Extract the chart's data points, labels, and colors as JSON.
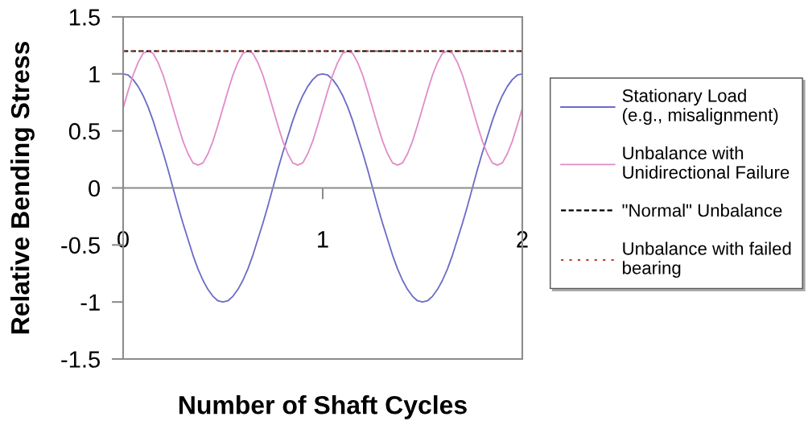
{
  "chart_data": {
    "type": "line",
    "xlabel": "Number of Shaft Cycles",
    "ylabel": "Relative Bending Stress",
    "x": [
      0,
      0.025,
      0.05,
      0.075,
      0.1,
      0.125,
      0.15,
      0.175,
      0.2,
      0.225,
      0.25,
      0.275,
      0.3,
      0.325,
      0.35,
      0.375,
      0.4,
      0.425,
      0.45,
      0.475,
      0.5,
      0.525,
      0.55,
      0.575,
      0.6,
      0.625,
      0.65,
      0.675,
      0.7,
      0.725,
      0.75,
      0.775,
      0.8,
      0.825,
      0.85,
      0.875,
      0.9,
      0.925,
      0.95,
      0.975,
      1,
      1.025,
      1.05,
      1.075,
      1.1,
      1.125,
      1.15,
      1.175,
      1.2,
      1.225,
      1.25,
      1.275,
      1.3,
      1.325,
      1.35,
      1.375,
      1.4,
      1.425,
      1.45,
      1.475,
      1.5,
      1.525,
      1.55,
      1.575,
      1.6,
      1.625,
      1.65,
      1.675,
      1.7,
      1.725,
      1.75,
      1.775,
      1.8,
      1.825,
      1.85,
      1.875,
      1.9,
      1.925,
      1.95,
      1.975,
      2
    ],
    "series": [
      {
        "name": "Stationary Load\n(e.g., misalignment)",
        "color": "#6b6bc8",
        "values": [
          1,
          0.99,
          0.95,
          0.89,
          0.81,
          0.71,
          0.59,
          0.45,
          0.31,
          0.16,
          0,
          -0.16,
          -0.31,
          -0.45,
          -0.59,
          -0.71,
          -0.81,
          -0.89,
          -0.95,
          -0.99,
          -1,
          -0.99,
          -0.95,
          -0.89,
          -0.81,
          -0.71,
          -0.59,
          -0.45,
          -0.31,
          -0.16,
          0,
          0.16,
          0.31,
          0.45,
          0.59,
          0.71,
          0.81,
          0.89,
          0.95,
          0.99,
          1,
          0.99,
          0.95,
          0.89,
          0.81,
          0.71,
          0.59,
          0.45,
          0.31,
          0.16,
          0,
          -0.16,
          -0.31,
          -0.45,
          -0.59,
          -0.71,
          -0.81,
          -0.89,
          -0.95,
          -0.99,
          -1,
          -0.99,
          -0.95,
          -0.89,
          -0.81,
          -0.71,
          -0.59,
          -0.45,
          -0.31,
          -0.16,
          0,
          0.16,
          0.31,
          0.45,
          0.59,
          0.71,
          0.81,
          0.89,
          0.95,
          0.99,
          1
        ]
      },
      {
        "name": "Unbalance with\nUnidirectional Failure",
        "color": "#e08cc8",
        "values": [
          0.7,
          0.85,
          0.99,
          1.1,
          1.18,
          1.2,
          1.18,
          1.1,
          0.99,
          0.85,
          0.7,
          0.55,
          0.41,
          0.3,
          0.22,
          0.2,
          0.22,
          0.3,
          0.41,
          0.55,
          0.7,
          0.85,
          0.99,
          1.1,
          1.18,
          1.2,
          1.18,
          1.1,
          0.99,
          0.85,
          0.7,
          0.55,
          0.41,
          0.3,
          0.22,
          0.2,
          0.22,
          0.3,
          0.41,
          0.55,
          0.7,
          0.85,
          0.99,
          1.1,
          1.18,
          1.2,
          1.18,
          1.1,
          0.99,
          0.85,
          0.7,
          0.55,
          0.41,
          0.3,
          0.22,
          0.2,
          0.22,
          0.3,
          0.41,
          0.55,
          0.7,
          0.85,
          0.99,
          1.1,
          1.18,
          1.2,
          1.18,
          1.1,
          0.99,
          0.85,
          0.7,
          0.55,
          0.41,
          0.3,
          0.22,
          0.2,
          0.22,
          0.3,
          0.41,
          0.55,
          0.7
        ]
      }
    ],
    "ref_lines": [
      {
        "axis": "y",
        "value": 1.2,
        "label": "\"Normal\" Unbalance",
        "color": "#000000",
        "line_style": "dashed"
      },
      {
        "axis": "y",
        "value": 1.2,
        "label": "Unbalance with failed\nbearing",
        "color": "#c0392b",
        "line_style": "dotted"
      }
    ],
    "line_style": "solid",
    "xlim": [
      0,
      2
    ],
    "ylim": [
      -1.5,
      1.5
    ],
    "xticks": [
      0,
      1,
      2
    ],
    "yticks": [
      -1.5,
      -1,
      -0.5,
      0,
      0.5,
      1,
      1.5
    ],
    "legend": "right"
  }
}
